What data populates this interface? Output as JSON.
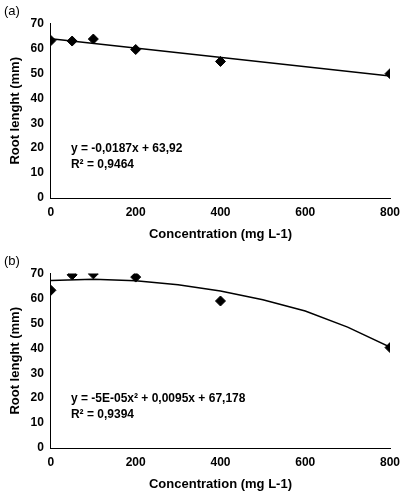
{
  "chart_data": [
    {
      "type": "scatter",
      "title": "(a)",
      "xlabel": "Concentration (mg L-1)",
      "ylabel": "Root lenght (mm)",
      "xlim": [
        0,
        800
      ],
      "xticks": [
        0,
        200,
        400,
        600,
        800
      ],
      "ylim": [
        0,
        70
      ],
      "yticks": [
        0,
        10,
        20,
        30,
        40,
        50,
        60,
        70
      ],
      "grid": false,
      "annotations": [
        "y = -0,0187x + 63,92",
        "R² = 0,9464"
      ],
      "series": [
        {
          "type": "scatter",
          "marker": "diamond",
          "color": "#000000",
          "x": [
            0,
            50,
            100,
            200,
            400,
            800
          ],
          "values": [
            63.2,
            63.0,
            63.8,
            59.6,
            54.8,
            49.9
          ]
        },
        {
          "type": "line",
          "line_style": "solid",
          "color": "#000000",
          "x": [
            0,
            800
          ],
          "values": [
            63.9,
            49.0
          ]
        }
      ]
    },
    {
      "type": "scatter",
      "title": "(b)",
      "xlabel": "Concentration (mg L-1)",
      "ylabel": "Root lenght (mm)",
      "xlim": [
        0,
        800
      ],
      "xticks": [
        0,
        200,
        400,
        600,
        800
      ],
      "ylim": [
        0,
        70
      ],
      "yticks": [
        0,
        10,
        20,
        30,
        40,
        50,
        60,
        70
      ],
      "grid": false,
      "annotations": [
        "y = -5E-05x² + 0,0095x + 67,178",
        "R² = 0,9394"
      ],
      "series": [
        {
          "type": "scatter",
          "marker": "diamond",
          "color": "#000000",
          "x": [
            0,
            50,
            100,
            200,
            400,
            800
          ],
          "values": [
            63.3,
            69.5,
            69.9,
            68.6,
            59.0,
            40.3
          ]
        },
        {
          "type": "line",
          "line_style": "solid",
          "color": "#000000",
          "x": [
            0,
            100,
            200,
            300,
            400,
            500,
            600,
            700,
            800
          ],
          "values": [
            67.2,
            67.7,
            67.1,
            65.5,
            63.0,
            59.5,
            55.0,
            48.5,
            40.5
          ]
        }
      ]
    }
  ]
}
